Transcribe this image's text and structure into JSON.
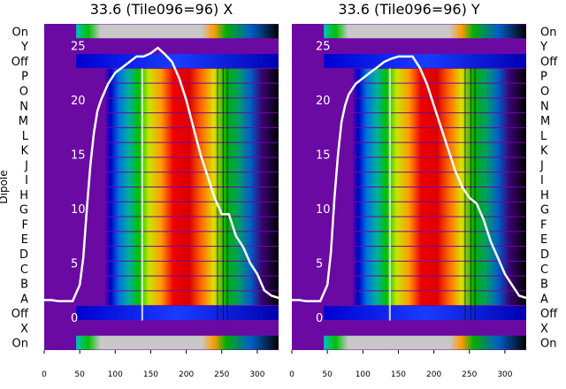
{
  "chart_data": [
    {
      "type": "heatmap",
      "title": "33.6 (Tile096=96) X",
      "ylabel": "Dipole",
      "row_labels": [
        "On",
        "Y",
        "Off",
        "P",
        "O",
        "N",
        "M",
        "L",
        "K",
        "J",
        "I",
        "H",
        "G",
        "F",
        "E",
        "D",
        "C",
        "B",
        "A",
        "Off",
        "X",
        "On"
      ],
      "x_ticks": [
        0,
        50,
        100,
        150,
        200,
        250,
        300
      ],
      "xlim": [
        0,
        330
      ],
      "overlay_y_ticks": [
        0,
        5,
        10,
        15,
        20,
        25
      ],
      "overlay_ylim": [
        -3,
        27
      ],
      "colormap": "nipy_spectral",
      "overlay_lines": [
        {
          "x": [
            0,
            10,
            20,
            30,
            40,
            50,
            55,
            60,
            65,
            70,
            75,
            80,
            90,
            100,
            110,
            120,
            130,
            140,
            150,
            160,
            170,
            180,
            190,
            200,
            210,
            220,
            230,
            240,
            250,
            260,
            270,
            280,
            290,
            300,
            310,
            320,
            330
          ],
          "y": [
            1.6,
            1.6,
            1.5,
            1.5,
            1.5,
            3,
            5.5,
            10,
            14,
            17,
            19,
            20,
            21.5,
            22.5,
            23,
            23.5,
            24,
            24,
            24.3,
            24.8,
            24.2,
            23.5,
            22,
            20,
            17.5,
            15,
            13,
            11,
            9.5,
            9.5,
            7.5,
            6.5,
            5,
            4,
            2.5,
            2,
            1.8
          ]
        }
      ]
    },
    {
      "type": "heatmap",
      "title": "33.6 (Tile096=96) Y",
      "ylabel": "",
      "row_labels": [
        "On",
        "Y",
        "Off",
        "P",
        "O",
        "N",
        "M",
        "L",
        "K",
        "J",
        "I",
        "H",
        "G",
        "F",
        "E",
        "D",
        "C",
        "B",
        "A",
        "Off",
        "X",
        "On"
      ],
      "x_ticks": [
        0,
        50,
        100,
        150,
        200,
        250,
        300
      ],
      "xlim": [
        0,
        330
      ],
      "overlay_y_ticks": [
        0,
        5,
        10,
        15,
        20,
        25
      ],
      "overlay_ylim": [
        -3,
        27
      ],
      "colormap": "nipy_spectral",
      "overlay_lines": [
        {
          "x": [
            0,
            10,
            20,
            30,
            40,
            50,
            55,
            60,
            65,
            70,
            75,
            80,
            90,
            100,
            110,
            120,
            130,
            140,
            150,
            160,
            170,
            180,
            190,
            200,
            210,
            220,
            230,
            240,
            250,
            260,
            270,
            280,
            290,
            300,
            310,
            320,
            330
          ],
          "y": [
            1.6,
            1.6,
            1.5,
            1.5,
            1.5,
            3,
            6,
            11,
            15,
            18,
            19.5,
            20.5,
            21.5,
            22,
            22.5,
            23,
            23.5,
            23.8,
            24,
            24,
            24,
            23,
            21.5,
            19.5,
            17.5,
            15.5,
            13.5,
            12,
            11,
            10.5,
            9,
            7,
            5.5,
            4,
            3,
            2,
            1.8
          ]
        }
      ]
    }
  ]
}
